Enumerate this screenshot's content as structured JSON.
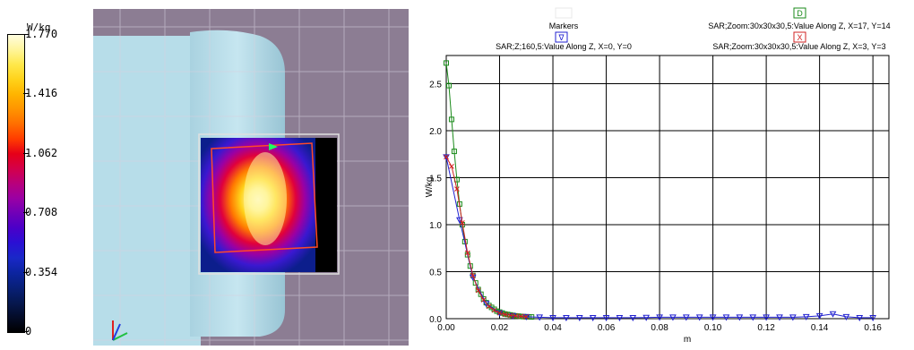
{
  "colorbar": {
    "unit": "W/kg",
    "labels": [
      "1.770",
      "1.416",
      "1.062",
      "0.708",
      "0.354",
      "0"
    ],
    "colors": [
      "#fffde0",
      "#fff59a",
      "#ffe84a",
      "#ffd21a",
      "#ffb400",
      "#ff9400",
      "#ff6e00",
      "#ff3c00",
      "#e60018",
      "#d4004a",
      "#b8007c",
      "#9a00a4",
      "#7000b8",
      "#4a00c8",
      "#2a10d4",
      "#1a28c8",
      "#0c24a0",
      "#082078",
      "#061850",
      "#040c28",
      "#000000"
    ]
  },
  "scene": {
    "background": "#8c7d93",
    "phantom_color": "#b7dde9"
  },
  "chart_data": {
    "type": "line",
    "xlabel": "m",
    "ylabel": "W/kg",
    "xlim": [
      0,
      0.166
    ],
    "ylim": [
      0,
      2.8
    ],
    "xticks": [
      0.0,
      0.02,
      0.04,
      0.06,
      0.08,
      0.1,
      0.12,
      0.14,
      0.16
    ],
    "xtick_labels": [
      "0.00",
      "0.02",
      "0.04",
      "0.06",
      "0.08",
      "0.10",
      "0.12",
      "0.14",
      "0.16"
    ],
    "yticks": [
      0.0,
      0.5,
      1.0,
      1.5,
      2.0,
      2.5
    ],
    "ytick_labels": [
      "0.0",
      "0.5",
      "1.0",
      "1.5",
      "2.0",
      "2.5"
    ],
    "grid": true,
    "legend": {
      "title": "Markers",
      "items": [
        {
          "marker": "D",
          "text": "SAR;Zoom:30x30x30,5:Value Along Z, X=17, Y=14",
          "color": "#1a8a1a"
        },
        {
          "marker": "∇",
          "text": "SAR;Z;160,5:Value Along Z, X=0, Y=0",
          "color": "#2020d0"
        },
        {
          "marker": "X",
          "text": "SAR;Zoom:30x30x30,5:Value Along Z, X=3, Y=3",
          "color": "#d02020"
        }
      ]
    },
    "series": [
      {
        "marker": "square",
        "color": "#1a8a1a",
        "x": [
          0,
          0.001,
          0.002,
          0.003,
          0.004,
          0.005,
          0.006,
          0.007,
          0.008,
          0.009,
          0.01,
          0.011,
          0.012,
          0.013,
          0.014,
          0.015,
          0.016,
          0.017,
          0.018,
          0.019,
          0.02,
          0.021,
          0.022,
          0.023,
          0.024,
          0.025,
          0.026,
          0.027,
          0.028,
          0.029,
          0.03,
          0.031,
          0.032
        ],
        "y": [
          2.72,
          2.48,
          2.12,
          1.78,
          1.48,
          1.22,
          1.0,
          0.82,
          0.68,
          0.56,
          0.46,
          0.38,
          0.31,
          0.26,
          0.21,
          0.17,
          0.14,
          0.12,
          0.1,
          0.08,
          0.07,
          0.06,
          0.05,
          0.045,
          0.04,
          0.035,
          0.03,
          0.027,
          0.024,
          0.022,
          0.02,
          0.019,
          0.018
        ]
      },
      {
        "marker": "triangle",
        "color": "#2020d0",
        "x": [
          0,
          0.005,
          0.01,
          0.015,
          0.02,
          0.025,
          0.03,
          0.035,
          0.04,
          0.045,
          0.05,
          0.055,
          0.06,
          0.065,
          0.07,
          0.075,
          0.08,
          0.085,
          0.09,
          0.095,
          0.1,
          0.105,
          0.11,
          0.115,
          0.12,
          0.125,
          0.13,
          0.135,
          0.14,
          0.145,
          0.15,
          0.155,
          0.16
        ],
        "y": [
          1.72,
          1.05,
          0.44,
          0.16,
          0.06,
          0.03,
          0.02,
          0.015,
          0.01,
          0.01,
          0.01,
          0.01,
          0.01,
          0.01,
          0.01,
          0.012,
          0.015,
          0.015,
          0.015,
          0.015,
          0.015,
          0.015,
          0.015,
          0.015,
          0.015,
          0.015,
          0.015,
          0.02,
          0.03,
          0.05,
          0.02,
          0.01,
          0.01
        ]
      },
      {
        "marker": "x",
        "color": "#d02020",
        "x": [
          0,
          0.002,
          0.004,
          0.006,
          0.008,
          0.01,
          0.012,
          0.014,
          0.016,
          0.018,
          0.02,
          0.022,
          0.024,
          0.026,
          0.028,
          0.03
        ],
        "y": [
          1.72,
          1.62,
          1.38,
          1.02,
          0.7,
          0.46,
          0.3,
          0.2,
          0.13,
          0.09,
          0.06,
          0.045,
          0.035,
          0.03,
          0.025,
          0.02
        ]
      }
    ]
  }
}
